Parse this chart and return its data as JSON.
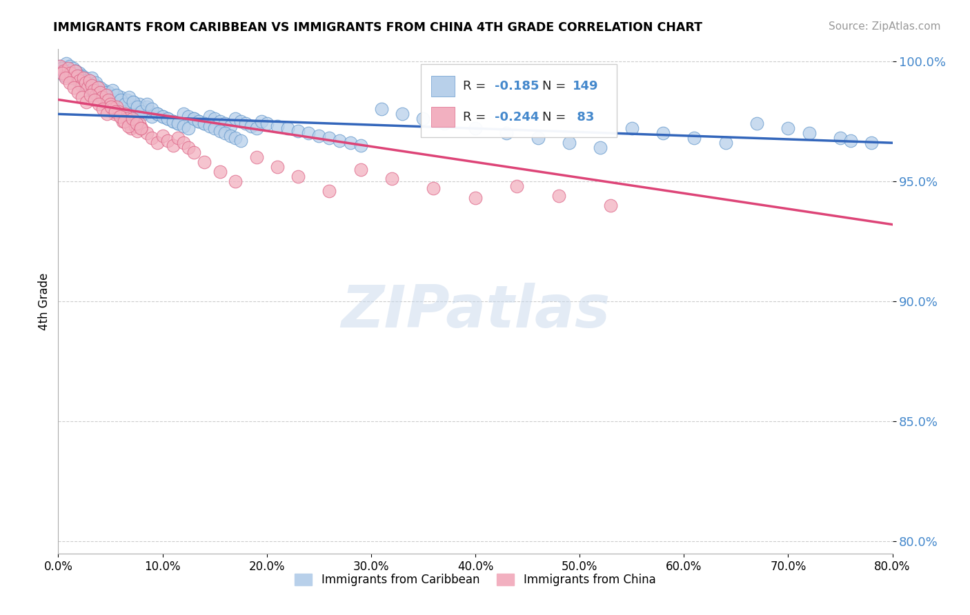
{
  "title": "IMMIGRANTS FROM CARIBBEAN VS IMMIGRANTS FROM CHINA 4TH GRADE CORRELATION CHART",
  "source_text": "Source: ZipAtlas.com",
  "ylabel": "4th Grade",
  "x_min": 0.0,
  "x_max": 0.8,
  "y_min": 0.795,
  "y_max": 1.005,
  "yticks": [
    0.8,
    0.85,
    0.9,
    0.95,
    1.0
  ],
  "ytick_labels": [
    "80.0%",
    "85.0%",
    "90.0%",
    "95.0%",
    "100.0%"
  ],
  "xticks": [
    0.0,
    0.1,
    0.2,
    0.3,
    0.4,
    0.5,
    0.6,
    0.7,
    0.8
  ],
  "xtick_labels": [
    "0.0%",
    "10.0%",
    "20.0%",
    "30.0%",
    "40.0%",
    "50.0%",
    "60.0%",
    "70.0%",
    "80.0%"
  ],
  "blue_color": "#b8d0ea",
  "pink_color": "#f2b0c0",
  "blue_edge_color": "#6699cc",
  "pink_edge_color": "#dd6688",
  "blue_line_color": "#3366bb",
  "pink_line_color": "#dd4477",
  "trend_line_blue": {
    "x0": 0.0,
    "y0": 0.978,
    "x1": 0.8,
    "y1": 0.966
  },
  "trend_line_pink": {
    "x0": 0.0,
    "y0": 0.984,
    "x1": 0.8,
    "y1": 0.932
  },
  "watermark": "ZIPatlas",
  "legend_label1": "Immigrants from Caribbean",
  "legend_label2": "Immigrants from China",
  "blue_r": "-0.185",
  "blue_n": "149",
  "pink_r": "-0.244",
  "pink_n": " 83",
  "blue_scatter_x": [
    0.002,
    0.004,
    0.006,
    0.008,
    0.009,
    0.01,
    0.011,
    0.012,
    0.013,
    0.014,
    0.015,
    0.016,
    0.017,
    0.018,
    0.019,
    0.02,
    0.021,
    0.022,
    0.023,
    0.024,
    0.025,
    0.026,
    0.027,
    0.028,
    0.03,
    0.031,
    0.032,
    0.033,
    0.034,
    0.035,
    0.036,
    0.037,
    0.038,
    0.039,
    0.04,
    0.042,
    0.044,
    0.045,
    0.047,
    0.048,
    0.05,
    0.052,
    0.054,
    0.056,
    0.058,
    0.06,
    0.062,
    0.064,
    0.066,
    0.068,
    0.07,
    0.072,
    0.074,
    0.076,
    0.078,
    0.08,
    0.082,
    0.085,
    0.088,
    0.09,
    0.095,
    0.1,
    0.105,
    0.11,
    0.115,
    0.12,
    0.125,
    0.13,
    0.135,
    0.14,
    0.145,
    0.15,
    0.155,
    0.16,
    0.165,
    0.17,
    0.175,
    0.18,
    0.185,
    0.19,
    0.195,
    0.2,
    0.21,
    0.22,
    0.23,
    0.24,
    0.25,
    0.26,
    0.27,
    0.28,
    0.29,
    0.31,
    0.33,
    0.35,
    0.37,
    0.4,
    0.43,
    0.46,
    0.49,
    0.52,
    0.55,
    0.58,
    0.61,
    0.64,
    0.67,
    0.7,
    0.72,
    0.75,
    0.76,
    0.78,
    0.003,
    0.007,
    0.013,
    0.016,
    0.02,
    0.024,
    0.028,
    0.032,
    0.036,
    0.04,
    0.044,
    0.048,
    0.052,
    0.056,
    0.06,
    0.064,
    0.068,
    0.072,
    0.076,
    0.08,
    0.085,
    0.09,
    0.095,
    0.1,
    0.105,
    0.11,
    0.115,
    0.12,
    0.125,
    0.13,
    0.135,
    0.14,
    0.145,
    0.15,
    0.155,
    0.16,
    0.165,
    0.17,
    0.175
  ],
  "blue_scatter_y": [
    0.998,
    0.996,
    0.994,
    0.999,
    0.997,
    0.995,
    0.998,
    0.996,
    0.994,
    0.997,
    0.995,
    0.993,
    0.996,
    0.994,
    0.992,
    0.995,
    0.993,
    0.991,
    0.994,
    0.992,
    0.99,
    0.993,
    0.991,
    0.989,
    0.992,
    0.99,
    0.988,
    0.991,
    0.989,
    0.987,
    0.99,
    0.988,
    0.986,
    0.989,
    0.987,
    0.985,
    0.988,
    0.986,
    0.984,
    0.987,
    0.985,
    0.983,
    0.986,
    0.984,
    0.982,
    0.985,
    0.983,
    0.981,
    0.984,
    0.982,
    0.98,
    0.983,
    0.981,
    0.979,
    0.982,
    0.98,
    0.978,
    0.981,
    0.979,
    0.977,
    0.978,
    0.977,
    0.976,
    0.975,
    0.974,
    0.978,
    0.977,
    0.976,
    0.975,
    0.974,
    0.977,
    0.976,
    0.975,
    0.974,
    0.973,
    0.976,
    0.975,
    0.974,
    0.973,
    0.972,
    0.975,
    0.974,
    0.973,
    0.972,
    0.971,
    0.97,
    0.969,
    0.968,
    0.967,
    0.966,
    0.965,
    0.98,
    0.978,
    0.976,
    0.974,
    0.972,
    0.97,
    0.968,
    0.966,
    0.964,
    0.972,
    0.97,
    0.968,
    0.966,
    0.974,
    0.972,
    0.97,
    0.968,
    0.967,
    0.966,
    0.997,
    0.995,
    0.993,
    0.996,
    0.994,
    0.992,
    0.99,
    0.993,
    0.991,
    0.989,
    0.987,
    0.985,
    0.988,
    0.986,
    0.984,
    0.982,
    0.985,
    0.983,
    0.981,
    0.979,
    0.982,
    0.98,
    0.978,
    0.977,
    0.976,
    0.975,
    0.974,
    0.973,
    0.972,
    0.976,
    0.975,
    0.974,
    0.973,
    0.972,
    0.971,
    0.97,
    0.969,
    0.968,
    0.967
  ],
  "pink_scatter_x": [
    0.002,
    0.005,
    0.008,
    0.01,
    0.012,
    0.014,
    0.016,
    0.018,
    0.02,
    0.022,
    0.024,
    0.026,
    0.028,
    0.03,
    0.032,
    0.034,
    0.036,
    0.038,
    0.04,
    0.042,
    0.044,
    0.046,
    0.048,
    0.05,
    0.052,
    0.054,
    0.056,
    0.058,
    0.06,
    0.062,
    0.064,
    0.066,
    0.068,
    0.07,
    0.072,
    0.074,
    0.076,
    0.078,
    0.08,
    0.085,
    0.09,
    0.095,
    0.1,
    0.105,
    0.11,
    0.115,
    0.12,
    0.125,
    0.13,
    0.14,
    0.155,
    0.17,
    0.19,
    0.21,
    0.23,
    0.26,
    0.29,
    0.32,
    0.36,
    0.4,
    0.44,
    0.48,
    0.53,
    0.004,
    0.007,
    0.011,
    0.015,
    0.019,
    0.023,
    0.027,
    0.031,
    0.035,
    0.039,
    0.043,
    0.047,
    0.051,
    0.055,
    0.059,
    0.063,
    0.067,
    0.071,
    0.075,
    0.079
  ],
  "pink_scatter_y": [
    0.998,
    0.996,
    0.994,
    0.997,
    0.995,
    0.993,
    0.996,
    0.994,
    0.992,
    0.99,
    0.993,
    0.991,
    0.989,
    0.992,
    0.99,
    0.988,
    0.986,
    0.989,
    0.987,
    0.985,
    0.983,
    0.986,
    0.984,
    0.982,
    0.98,
    0.978,
    0.981,
    0.979,
    0.977,
    0.975,
    0.978,
    0.976,
    0.974,
    0.972,
    0.975,
    0.973,
    0.971,
    0.974,
    0.972,
    0.97,
    0.968,
    0.966,
    0.969,
    0.967,
    0.965,
    0.968,
    0.966,
    0.964,
    0.962,
    0.958,
    0.954,
    0.95,
    0.96,
    0.956,
    0.952,
    0.946,
    0.955,
    0.951,
    0.947,
    0.943,
    0.948,
    0.944,
    0.94,
    0.995,
    0.993,
    0.991,
    0.989,
    0.987,
    0.985,
    0.983,
    0.986,
    0.984,
    0.982,
    0.98,
    0.978,
    0.981,
    0.979,
    0.977,
    0.975,
    0.973,
    0.976,
    0.974,
    0.972
  ]
}
